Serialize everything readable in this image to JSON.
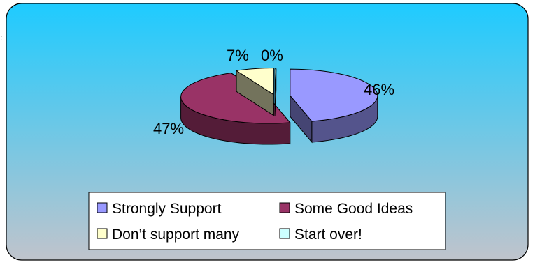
{
  "chart_data": {
    "type": "pie",
    "style": "3d-exploded",
    "title": "",
    "slices": [
      {
        "name": "Strongly Support",
        "value": 46,
        "label": "46%",
        "color": "#9999ff"
      },
      {
        "name": "Some Good Ideas",
        "value": 47,
        "label": "47%",
        "color": "#993366"
      },
      {
        "name": "Don’t support many",
        "value": 7,
        "label": "7%",
        "color": "#ffffcc"
      },
      {
        "name": "Start over!",
        "value": 0,
        "label": "0%",
        "color": "#ccffff"
      }
    ],
    "legend_position": "bottom",
    "background_gradient": [
      "#1ecbff",
      "#c0c4cc"
    ],
    "border_color": "#000000"
  }
}
